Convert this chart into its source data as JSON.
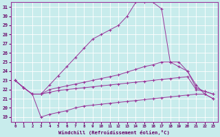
{
  "xlabel": "Windchill (Refroidissement éolien,°C)",
  "bg_color": "#c8ecec",
  "line_color": "#993399",
  "xmin": 0,
  "xmax": 23,
  "ymin": 19,
  "ymax": 31,
  "yticks": [
    19,
    20,
    21,
    22,
    23,
    24,
    25,
    26,
    27,
    28,
    29,
    30,
    31
  ],
  "xticks": [
    0,
    1,
    2,
    3,
    4,
    5,
    6,
    7,
    8,
    9,
    10,
    11,
    12,
    13,
    14,
    15,
    16,
    17,
    18,
    19,
    20,
    21,
    22,
    23
  ],
  "line1_x": [
    0,
    1,
    2,
    3,
    4,
    5,
    6,
    7,
    8,
    9,
    10,
    11,
    12,
    13,
    14,
    15,
    16,
    17,
    18,
    19,
    20,
    21,
    22,
    23
  ],
  "line1_y": [
    23.0,
    22.2,
    21.5,
    21.5,
    22.5,
    23.5,
    24.5,
    25.5,
    26.5,
    27.5,
    28.0,
    28.5,
    29.0,
    30.0,
    31.5,
    31.5,
    31.5,
    30.8,
    25.0,
    24.5,
    24.0,
    22.5,
    21.5,
    21.0
  ],
  "line2_x": [
    0,
    1,
    2,
    3,
    4,
    5,
    6,
    7,
    8,
    9,
    10,
    11,
    12,
    13,
    14,
    15,
    16,
    17,
    18,
    19,
    20,
    21,
    22,
    23
  ],
  "line2_y": [
    23.0,
    22.2,
    21.5,
    21.5,
    22.0,
    22.2,
    22.4,
    22.6,
    22.8,
    23.0,
    23.2,
    23.4,
    23.6,
    23.9,
    24.2,
    24.5,
    24.7,
    25.0,
    25.0,
    25.0,
    24.0,
    22.2,
    21.8,
    21.5
  ],
  "line3_x": [
    0,
    1,
    2,
    3,
    4,
    5,
    6,
    7,
    8,
    9,
    10,
    11,
    12,
    13,
    14,
    15,
    16,
    17,
    18,
    19,
    20,
    21,
    22,
    23
  ],
  "line3_y": [
    23.0,
    22.2,
    21.5,
    21.5,
    21.7,
    21.9,
    22.0,
    22.1,
    22.2,
    22.3,
    22.4,
    22.5,
    22.6,
    22.7,
    22.8,
    22.9,
    23.0,
    23.1,
    23.2,
    23.3,
    23.4,
    22.0,
    21.8,
    21.5
  ],
  "line4_x": [
    0,
    1,
    2,
    3,
    4,
    5,
    6,
    7,
    8,
    9,
    10,
    11,
    12,
    13,
    14,
    15,
    16,
    17,
    18,
    19,
    20,
    21,
    22,
    23
  ],
  "line4_y": [
    23.0,
    22.2,
    21.5,
    19.0,
    19.3,
    19.5,
    19.7,
    20.0,
    20.2,
    20.3,
    20.4,
    20.5,
    20.6,
    20.7,
    20.8,
    20.9,
    21.0,
    21.1,
    21.2,
    21.3,
    21.4,
    21.5,
    21.5,
    21.0
  ]
}
